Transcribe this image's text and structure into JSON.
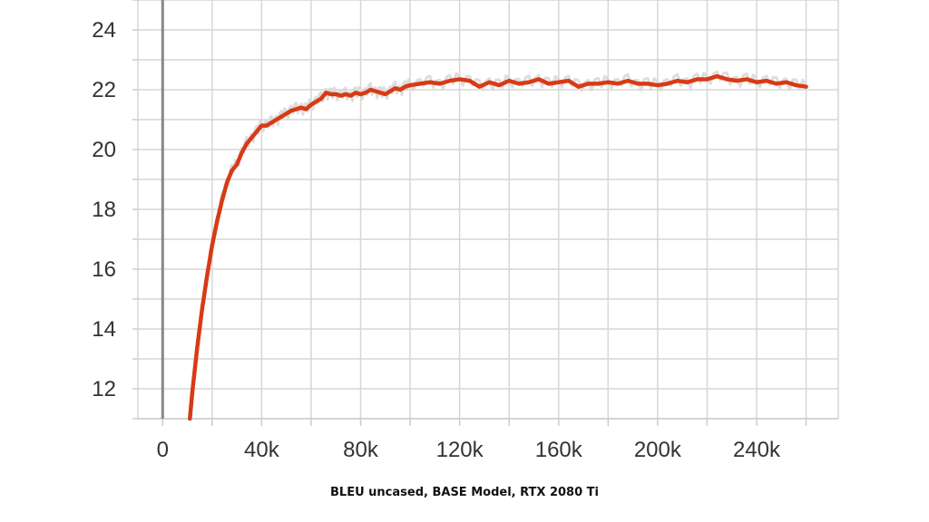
{
  "caption": "BLEU uncased, BASE Model, RTX 2080 Ti",
  "chart_data": {
    "type": "line",
    "title": "",
    "xlabel": "",
    "ylabel": "",
    "xlim": [
      -10000,
      273000
    ],
    "ylim": [
      11,
      25
    ],
    "grid": true,
    "x_ticks": [
      0,
      40000,
      80000,
      120000,
      160000,
      200000,
      240000
    ],
    "x_tick_labels": [
      "0",
      "40k",
      "80k",
      "120k",
      "160k",
      "200k",
      "240k"
    ],
    "y_ticks": [
      12,
      14,
      16,
      18,
      20,
      22,
      24
    ],
    "y_tick_labels": [
      "12",
      "14",
      "16",
      "18",
      "20",
      "22",
      "24"
    ],
    "colors": {
      "smoothed": "#d83a15",
      "raw": "#d9d9d9",
      "grid": "#d6d6d6",
      "zero_line": "#888888"
    },
    "series": [
      {
        "role": "smoothed",
        "x": [
          11000,
          12000,
          14000,
          16000,
          18000,
          20000,
          22000,
          24000,
          26000,
          28000,
          30000,
          32000,
          34000,
          36000,
          38000,
          40000,
          42000,
          44000,
          46000,
          48000,
          50000,
          52000,
          54000,
          56000,
          58000,
          60000,
          62000,
          64000,
          66000,
          68000,
          70000,
          72000,
          74000,
          76000,
          78000,
          80000,
          82000,
          84000,
          86000,
          88000,
          90000,
          92000,
          94000,
          96000,
          98000,
          100000,
          104000,
          108000,
          112000,
          116000,
          120000,
          124000,
          128000,
          132000,
          136000,
          140000,
          144000,
          148000,
          152000,
          156000,
          160000,
          164000,
          168000,
          172000,
          176000,
          180000,
          184000,
          188000,
          192000,
          196000,
          200000,
          204000,
          208000,
          212000,
          216000,
          220000,
          224000,
          228000,
          232000,
          236000,
          240000,
          244000,
          248000,
          252000,
          256000,
          260000
        ],
        "y": [
          11.0,
          11.9,
          13.4,
          14.7,
          15.8,
          16.8,
          17.6,
          18.3,
          18.9,
          19.3,
          19.5,
          19.9,
          20.2,
          20.4,
          20.6,
          20.8,
          20.8,
          20.9,
          21.0,
          21.1,
          21.2,
          21.3,
          21.35,
          21.4,
          21.35,
          21.5,
          21.6,
          21.7,
          21.9,
          21.85,
          21.85,
          21.8,
          21.85,
          21.8,
          21.9,
          21.85,
          21.9,
          22.0,
          21.95,
          21.9,
          21.85,
          21.95,
          22.05,
          22.0,
          22.1,
          22.15,
          22.2,
          22.25,
          22.2,
          22.3,
          22.35,
          22.3,
          22.1,
          22.25,
          22.15,
          22.3,
          22.2,
          22.25,
          22.35,
          22.2,
          22.25,
          22.3,
          22.1,
          22.2,
          22.2,
          22.25,
          22.2,
          22.3,
          22.2,
          22.2,
          22.15,
          22.2,
          22.3,
          22.25,
          22.35,
          22.35,
          22.45,
          22.35,
          22.3,
          22.35,
          22.25,
          22.3,
          22.2,
          22.25,
          22.15,
          22.1
        ]
      }
    ]
  }
}
